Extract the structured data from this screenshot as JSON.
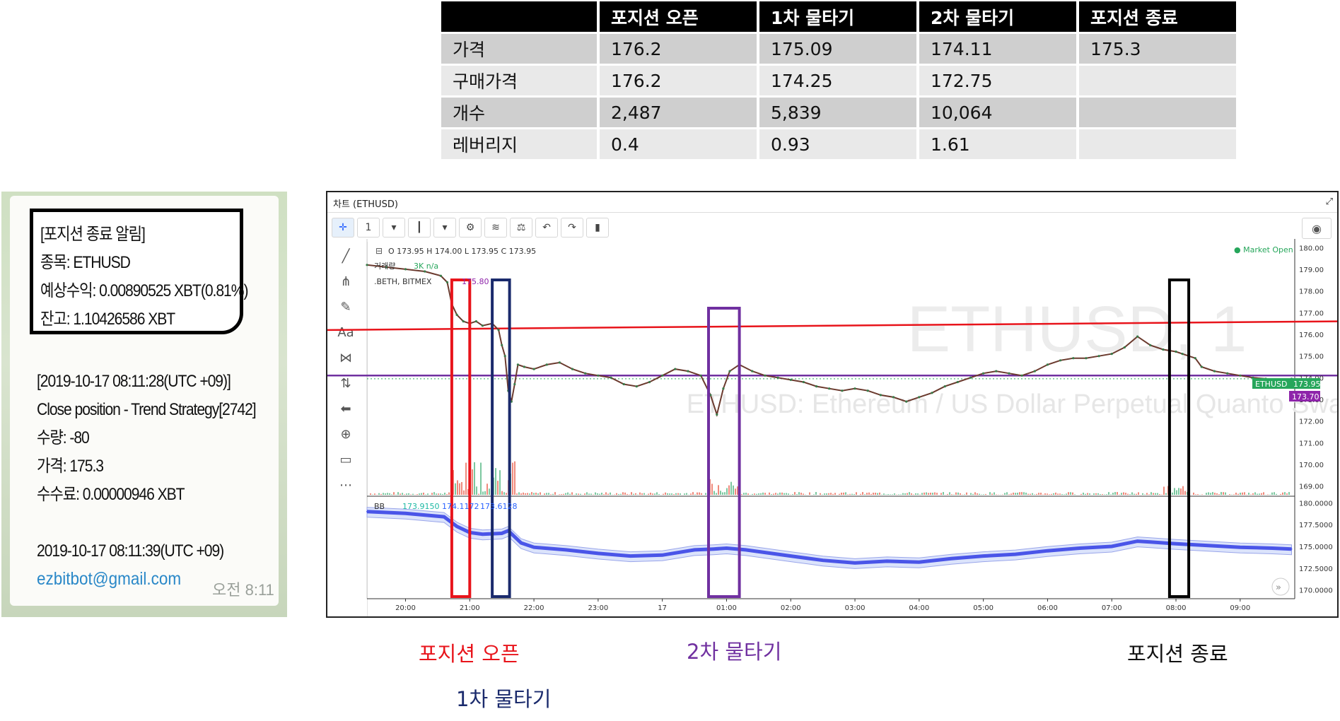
{
  "table": {
    "headers": [
      "",
      "포지션 오픈",
      "1차 물타기",
      "2차 물타기",
      "포지션 종료"
    ],
    "rows": [
      [
        "가격",
        "176.2",
        "175.09",
        "174.11",
        "175.3"
      ],
      [
        "구매가격",
        "176.2",
        "174.25",
        "172.75",
        ""
      ],
      [
        "개수",
        "2,487",
        "5,839",
        "10,064",
        ""
      ],
      [
        "레버리지",
        "0.4",
        "0.93",
        "1.61",
        ""
      ]
    ]
  },
  "message": {
    "notify_lines": [
      "[포지션 종료 알림]",
      "종목: ETHUSD",
      "예상수익: 0.00890525 XBT(0.81%)",
      "잔고: 1.10426586 XBT"
    ],
    "body_lines": [
      "[2019-10-17 08:11:28(UTC +09)]",
      "Close position - Trend Strategy[2742]",
      "수량: -80",
      "가격: 175.3",
      "수수료: 0.00000946 XBT",
      "",
      "2019-10-17 08:11:39(UTC +09)"
    ],
    "email": "ezbitbot@gmail.com",
    "time": "오전 8:11"
  },
  "chart_panel": {
    "title": "차트 (ETHUSD)",
    "interval": "1",
    "ohlc_label": "O 173.95 H 174.00 L 173.95 C 173.95",
    "volume_label": "거래량",
    "volume_value": "3K n/a",
    "index_label": ".BETH, BITMEX",
    "index_value": "175.80",
    "market_status": "● Market Open",
    "watermark_symbol": "ETHUSD, 1",
    "watermark_desc": "ETHUSD: Ethereum / US Dollar Perpetual Quanto Swap Contract",
    "price_badge_symbol": "ETHUSD",
    "price_badge_value": "173.95",
    "index_badge_value": "173.70",
    "bb_label": "BB",
    "bb_values": [
      "173.9150",
      "174.1172",
      "173.6128"
    ],
    "colors": {
      "open": "#e8141b",
      "first": "#1a2a6c",
      "second": "#7030a0",
      "close": "#000000",
      "bb": "#4a55e8",
      "price_badge": "#26a65b",
      "index_badge": "#8e24aa"
    }
  },
  "chart_data": {
    "type": "line",
    "x_ticks": [
      "20:00",
      "21:00",
      "22:00",
      "23:00",
      "17",
      "01:00",
      "02:00",
      "03:00",
      "04:00",
      "05:00",
      "06:00",
      "07:00",
      "08:00",
      "09:00"
    ],
    "price_ticks": [
      "180.00",
      "179.00",
      "178.00",
      "177.00",
      "176.00",
      "175.00",
      "174.00",
      "173.00",
      "172.00",
      "171.00",
      "170.00",
      "169.00"
    ],
    "ylim": [
      168.6,
      180.4
    ],
    "bb_ticks": [
      "180.0000",
      "177.5000",
      "175.0000",
      "172.5000",
      "170.0000"
    ],
    "bb_ylim": [
      169.4,
      180.6
    ],
    "series": [
      {
        "x": [
          19.4,
          19.7,
          20.0,
          20.3,
          20.55,
          20.65,
          20.72,
          20.8,
          20.9,
          21.0,
          21.1,
          21.2,
          21.35,
          21.45,
          21.5,
          21.55,
          21.6,
          21.65,
          21.7,
          21.75,
          21.85,
          22.0,
          22.2,
          22.4,
          22.6,
          22.8,
          23.0,
          23.2,
          23.4,
          23.6,
          23.8,
          24.0,
          24.2,
          24.4,
          24.6,
          24.75,
          24.85,
          24.95,
          25.05,
          25.2,
          25.4,
          25.6,
          25.8,
          26.0,
          26.2,
          26.4,
          26.6,
          26.8,
          27.0,
          27.2,
          27.4,
          27.6,
          27.8,
          28.0,
          28.2,
          28.4,
          28.6,
          28.8,
          29.0,
          29.2,
          29.4,
          29.6,
          29.8,
          30.0,
          30.2,
          30.4,
          30.6,
          30.8,
          31.0,
          31.2,
          31.4,
          31.6,
          31.8,
          32.0,
          32.1,
          32.2,
          32.3,
          32.4,
          32.6,
          32.8,
          33.0,
          33.2,
          33.4,
          33.6,
          33.8
        ],
        "values": [
          179.2,
          179.1,
          179.0,
          178.9,
          178.7,
          178.4,
          177.4,
          176.9,
          176.6,
          176.5,
          176.6,
          176.4,
          176.5,
          176.2,
          175.5,
          175.0,
          173.4,
          172.9,
          173.7,
          174.6,
          174.5,
          174.4,
          174.6,
          174.7,
          174.4,
          174.2,
          174.1,
          174.0,
          173.7,
          173.6,
          173.8,
          174.1,
          174.4,
          174.3,
          174.1,
          173.2,
          172.3,
          173.5,
          174.3,
          174.6,
          174.3,
          174.1,
          174.0,
          173.9,
          173.8,
          173.6,
          173.5,
          173.4,
          173.5,
          173.4,
          173.2,
          173.1,
          172.9,
          173.1,
          173.3,
          173.6,
          173.8,
          174.0,
          174.2,
          174.3,
          174.2,
          174.1,
          174.3,
          174.6,
          174.8,
          174.9,
          174.9,
          175.0,
          175.1,
          175.4,
          175.9,
          175.5,
          175.3,
          175.2,
          175.1,
          175.0,
          174.9,
          174.5,
          174.3,
          174.2,
          174.1,
          174.0,
          173.95,
          173.9,
          173.95
        ]
      }
    ],
    "bb_series": [
      {
        "x": [
          19.4,
          20.0,
          20.6,
          20.8,
          21.0,
          21.2,
          21.5,
          21.6,
          21.8,
          22.0,
          22.5,
          23.0,
          23.5,
          24.0,
          24.5,
          24.8,
          25.0,
          25.3,
          25.6,
          26.0,
          26.5,
          27.0,
          27.5,
          28.0,
          28.5,
          29.0,
          29.5,
          30.0,
          30.5,
          31.0,
          31.4,
          31.6,
          32.0,
          32.5,
          33.0,
          33.5,
          33.8
        ],
        "values": [
          179.0,
          178.8,
          178.4,
          177.3,
          176.6,
          176.4,
          176.5,
          176.8,
          175.4,
          174.9,
          174.6,
          174.2,
          173.9,
          174.0,
          174.6,
          174.7,
          174.8,
          174.6,
          174.3,
          173.9,
          173.4,
          173.1,
          173.3,
          173.2,
          173.6,
          173.9,
          174.1,
          174.5,
          174.8,
          175.0,
          175.6,
          175.5,
          175.3,
          175.1,
          174.9,
          174.8,
          174.7
        ]
      }
    ],
    "reference_lines": [
      {
        "name": "red",
        "values": [
          176.2,
          176.6
        ]
      },
      {
        "name": "purple",
        "values": [
          174.1,
          174.1
        ]
      }
    ],
    "highlights": [
      {
        "x": [
          20.72,
          21.0
        ],
        "label": "포지션 오픈"
      },
      {
        "x": [
          21.35,
          21.62
        ],
        "label": "1차 물타기"
      },
      {
        "x": [
          24.72,
          25.2
        ],
        "label": "2차 물타기"
      },
      {
        "x": [
          31.9,
          32.2
        ],
        "label": "포지션 종료"
      }
    ]
  },
  "annotations": {
    "open": "포지션 오픈",
    "first": "1차 물타기",
    "second": "2차 물타기",
    "close": "포지션 종료"
  }
}
